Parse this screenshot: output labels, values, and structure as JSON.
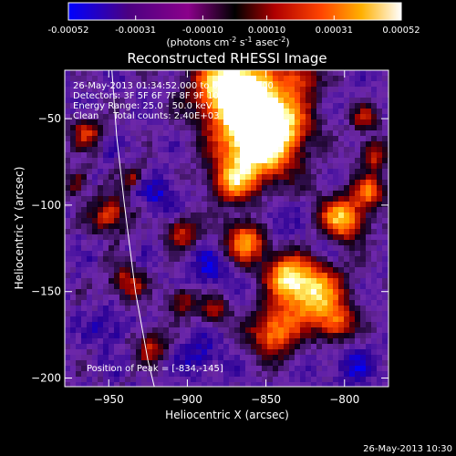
{
  "colorbar": {
    "ticks": [
      "-0.00052",
      "-0.00031",
      "-0.00010",
      "0.00010",
      "0.00031",
      "0.00052"
    ],
    "unit_main": "(photons cm",
    "unit_sup1": "-2",
    "unit_mid1": " s",
    "unit_sup2": "-1",
    "unit_mid2": " asec",
    "unit_sup3": "-2",
    "unit_end": ")"
  },
  "chart_data": {
    "type": "heatmap",
    "title": "Reconstructed RHESSI Image",
    "xlabel": "Heliocentric X (arcsec)",
    "ylabel": "Heliocentric Y (arcsec)",
    "xlim": [
      -978,
      -772
    ],
    "ylim": [
      -205,
      -22
    ],
    "xticks": [
      -950,
      -900,
      -850,
      -800
    ],
    "xtick_labels": [
      "−950",
      "−900",
      "−850",
      "−800"
    ],
    "yticks": [
      -50,
      -100,
      -150,
      -200
    ],
    "ytick_labels": [
      "−50",
      "−100",
      "−150",
      "−200"
    ],
    "value_range": [
      -0.00052,
      0.00052
    ],
    "colormap": [
      "#0000ff",
      "#4b0082",
      "#8b008b",
      "#000000",
      "#8b0000",
      "#ff4500",
      "#ffa500",
      "#ffff80",
      "#ffffff"
    ],
    "info_lines": [
      "26-May-2013 01:34:52.000 to 01:36:04.000",
      "Detectors: 3F 5F 6F 7F 8F 9F 10F",
      "Energy Range: 25.0 - 50.0 keV",
      "Clean     Total counts: 2.40E+03"
    ],
    "peak_label": "Position of Peak = [-834,-145]",
    "limb_curve": [
      [
        -948,
        -22
      ],
      [
        -945,
        -60
      ],
      [
        -940,
        -100
      ],
      [
        -933,
        -150
      ],
      [
        -925,
        -190
      ],
      [
        -921,
        -205
      ]
    ]
  },
  "footer": {
    "timestamp": "26-May-2013 10:30"
  }
}
